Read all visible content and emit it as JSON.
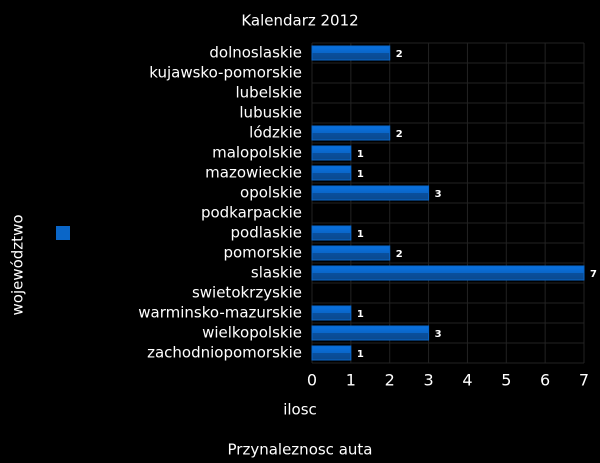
{
  "chart_data": {
    "type": "bar",
    "orientation": "horizontal",
    "title": "Kalendarz 2012",
    "x_label": "ilosc",
    "y_label": "województwo",
    "caption": "Przynaleznosc auta",
    "categories": [
      "dolnoslaskie",
      "kujawsko-pomorskie",
      "lubelskie",
      "lubuskie",
      "lódzkie",
      "malopolskie",
      "mazowieckie",
      "opolskie",
      "podkarpackie",
      "podlaskie",
      "pomorskie",
      "slaskie",
      "swietokrzyskie",
      "warminsko-mazurskie",
      "wielkopolskie",
      "zachodniopomorskie"
    ],
    "values": [
      2,
      0,
      0,
      0,
      2,
      1,
      1,
      3,
      0,
      1,
      2,
      7,
      0,
      1,
      3,
      1
    ],
    "color": "#0a66c8",
    "xlim": [
      0,
      7
    ],
    "xticks": [
      0,
      1,
      2,
      3,
      4,
      5,
      6,
      7
    ],
    "grid": true
  }
}
